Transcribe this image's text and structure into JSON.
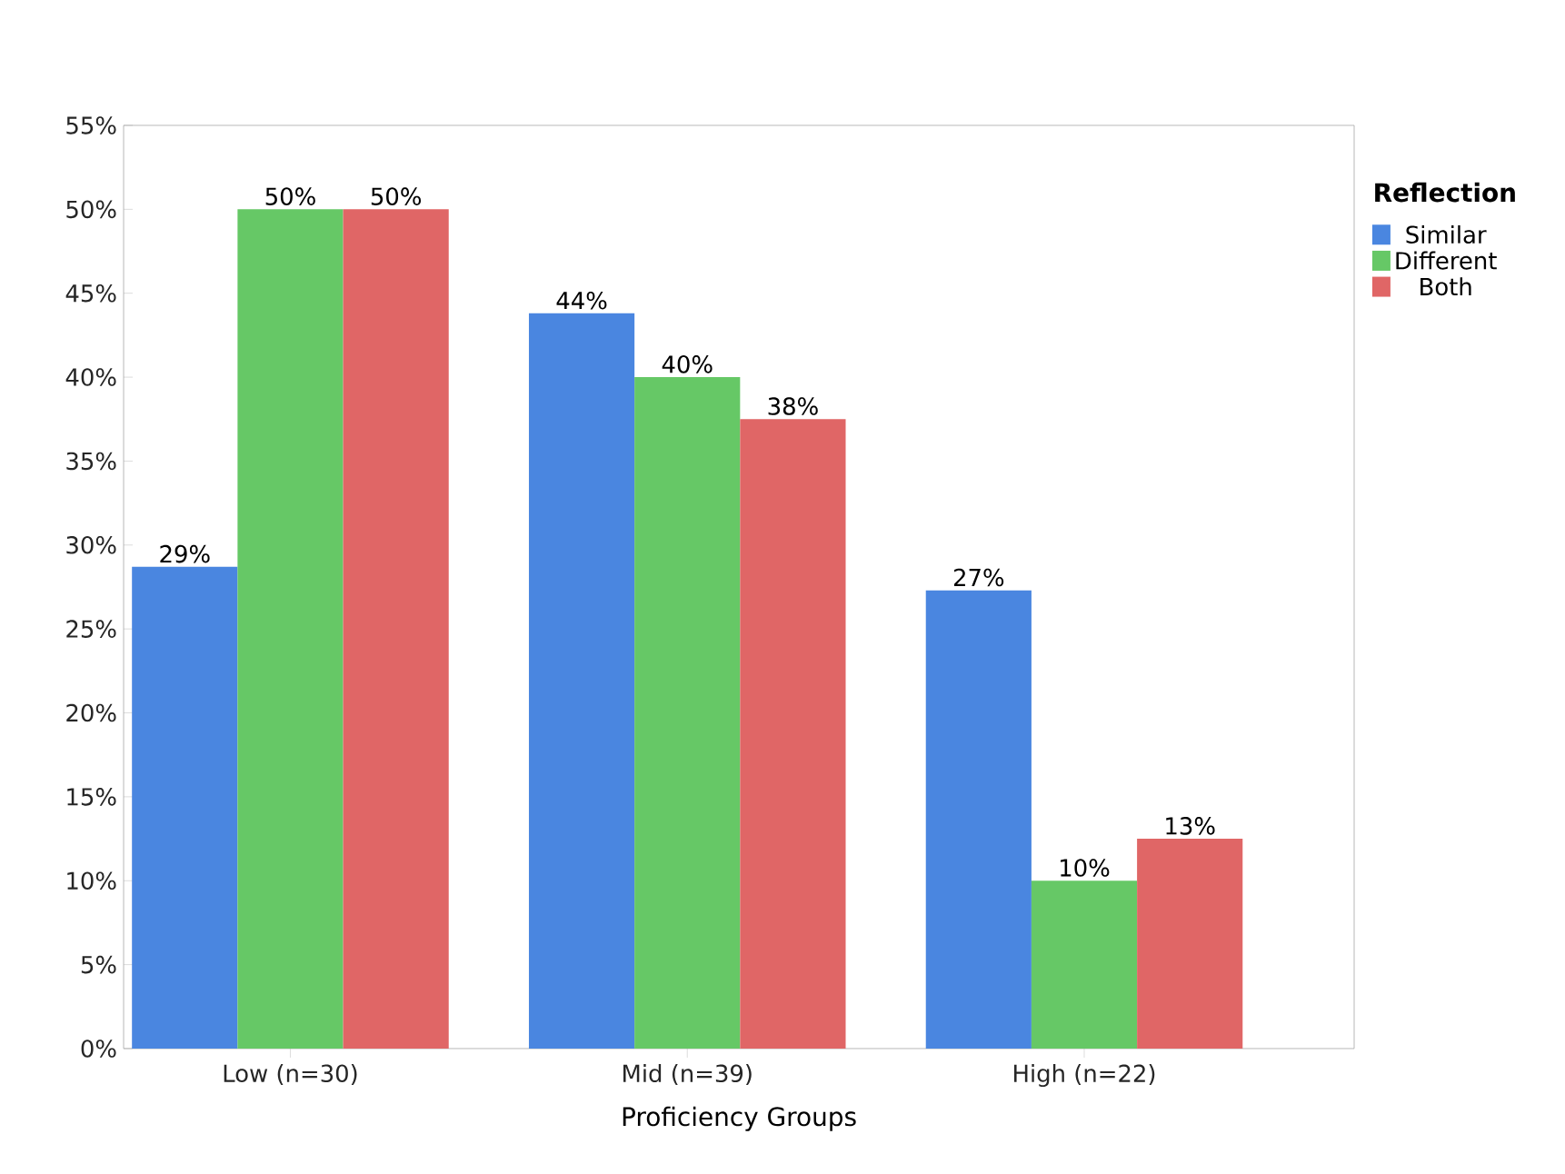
{
  "chart_data": {
    "type": "bar",
    "xlabel": "Proficiency Groups",
    "legend_title": "Reflection",
    "categories": [
      "Low (n=30)",
      "Mid (n=39)",
      "High (n=22)"
    ],
    "series": [
      {
        "name": "Similar",
        "color": "#4a86e0",
        "values": [
          28.7,
          43.8,
          27.3
        ],
        "value_labels": [
          "29%",
          "44%",
          "27%"
        ]
      },
      {
        "name": "Different",
        "color": "#66c866",
        "values": [
          50,
          40,
          10
        ],
        "value_labels": [
          "50%",
          "40%",
          "10%"
        ]
      },
      {
        "name": "Both",
        "color": "#e06666",
        "values": [
          50,
          37.5,
          12.5
        ],
        "value_labels": [
          "50%",
          "38%",
          "13%"
        ]
      }
    ],
    "ylim": [
      0,
      55
    ],
    "yticks": [
      {
        "value": 0,
        "label": "0%"
      },
      {
        "value": 5,
        "label": "5%"
      },
      {
        "value": 10,
        "label": "10%"
      },
      {
        "value": 15,
        "label": "15%"
      },
      {
        "value": 20,
        "label": "20%"
      },
      {
        "value": 25,
        "label": "25%"
      },
      {
        "value": 30,
        "label": "30%"
      },
      {
        "value": 35,
        "label": "35%"
      },
      {
        "value": 40,
        "label": "40%"
      },
      {
        "value": 45,
        "label": "45%"
      },
      {
        "value": 50,
        "label": "50%"
      },
      {
        "value": 55,
        "label": "55%"
      }
    ],
    "grid": false,
    "legend": "right"
  }
}
